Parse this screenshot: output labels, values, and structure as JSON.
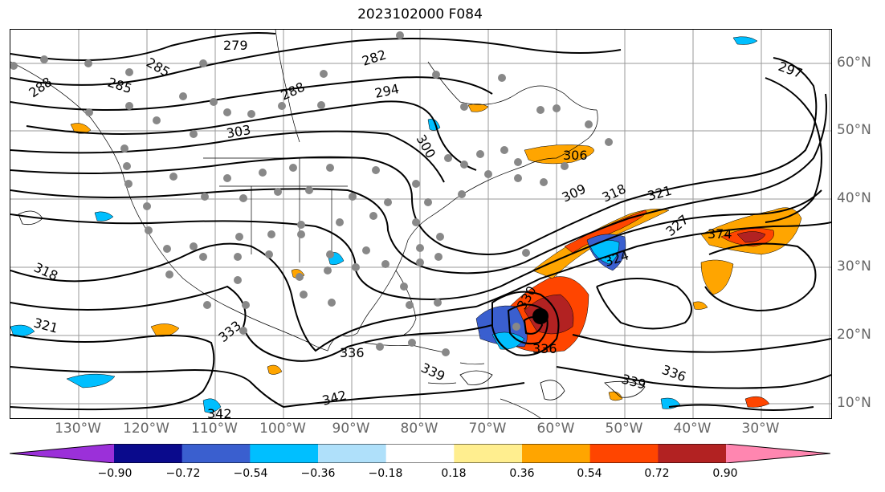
{
  "title": "2023102000 F084",
  "map": {
    "lat_labels": [
      "60°N",
      "50°N",
      "40°N",
      "30°N",
      "20°N",
      "10°N"
    ],
    "lon_labels": [
      "130°W",
      "120°W",
      "110°W",
      "100°W",
      "90°W",
      "80°W",
      "70°W",
      "60°W",
      "50°W",
      "40°W",
      "30°W"
    ],
    "contour_labels": [
      "279",
      "282",
      "285",
      "285",
      "288",
      "288",
      "294",
      "297",
      "300",
      "303",
      "306",
      "309",
      "318",
      "318",
      "321",
      "321",
      "324",
      "327",
      "330",
      "333",
      "336",
      "336",
      "336",
      "339",
      "339",
      "342",
      "342",
      "374"
    ],
    "storm_marker": "tropical cyclone"
  },
  "colorbar": {
    "extend": "both",
    "colors": [
      "#9b30d9",
      "#0a0a8c",
      "#3a5fcf",
      "#00bfff",
      "#afe0fa",
      "#ffffff",
      "#ffee8f",
      "#ffa500",
      "#ff4500",
      "#b22222",
      "#ff86b0"
    ],
    "ticks": [
      "−0.90",
      "−0.72",
      "−0.54",
      "−0.36",
      "−0.18",
      "0.18",
      "0.36",
      "0.54",
      "0.72",
      "0.90"
    ]
  }
}
